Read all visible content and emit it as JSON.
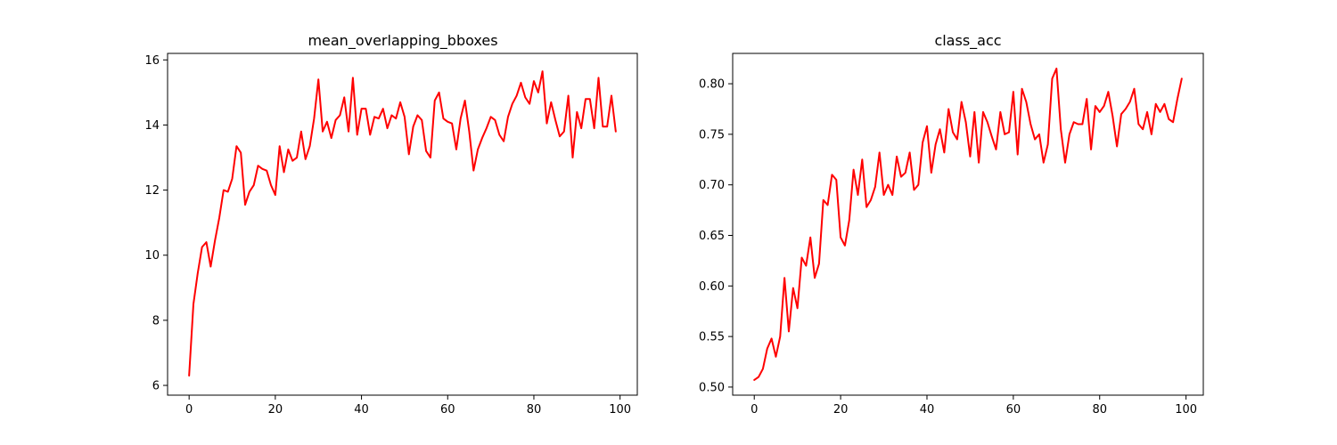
{
  "chart_data": [
    {
      "type": "line",
      "title": "mean_overlapping_bboxes",
      "xlabel": "",
      "ylabel": "",
      "xlim": [
        -5,
        104
      ],
      "ylim": [
        5.7,
        16.2
      ],
      "xticks": [
        0,
        20,
        40,
        60,
        80,
        100
      ],
      "yticks": [
        6,
        8,
        10,
        12,
        14,
        16
      ],
      "ytick_decimals": 0,
      "grid": false,
      "series": [
        {
          "color": "#ff0000",
          "x": [
            0,
            1,
            2,
            3,
            4,
            5,
            6,
            7,
            8,
            9,
            10,
            11,
            12,
            13,
            14,
            15,
            16,
            17,
            18,
            19,
            20,
            21,
            22,
            23,
            24,
            25,
            26,
            27,
            28,
            29,
            30,
            31,
            32,
            33,
            34,
            35,
            36,
            37,
            38,
            39,
            40,
            41,
            42,
            43,
            44,
            45,
            46,
            47,
            48,
            49,
            50,
            51,
            52,
            53,
            54,
            55,
            56,
            57,
            58,
            59,
            60,
            61,
            62,
            63,
            64,
            65,
            66,
            67,
            68,
            69,
            70,
            71,
            72,
            73,
            74,
            75,
            76,
            77,
            78,
            79,
            80,
            81,
            82,
            83,
            84,
            85,
            86,
            87,
            88,
            89,
            90,
            91,
            92,
            93,
            94,
            95,
            96,
            97,
            98,
            99
          ],
          "y": [
            6.3,
            8.5,
            9.45,
            10.25,
            10.4,
            9.65,
            10.45,
            11.15,
            12.0,
            11.95,
            12.35,
            13.35,
            13.15,
            11.55,
            11.95,
            12.15,
            12.75,
            12.65,
            12.6,
            12.15,
            11.85,
            13.35,
            12.55,
            13.25,
            12.9,
            13.0,
            13.8,
            12.95,
            13.35,
            14.2,
            15.4,
            13.8,
            14.1,
            13.6,
            14.15,
            14.3,
            14.85,
            13.8,
            15.45,
            13.7,
            14.5,
            14.5,
            13.7,
            14.25,
            14.2,
            14.5,
            13.9,
            14.3,
            14.2,
            14.7,
            14.25,
            13.1,
            13.95,
            14.3,
            14.15,
            13.2,
            13.0,
            14.75,
            15.0,
            14.2,
            14.1,
            14.05,
            13.25,
            14.2,
            14.75,
            13.8,
            12.6,
            13.25,
            13.6,
            13.9,
            14.25,
            14.15,
            13.7,
            13.5,
            14.25,
            14.65,
            14.9,
            15.3,
            14.85,
            14.65,
            15.35,
            15.0,
            15.65,
            14.05,
            14.7,
            14.15,
            13.65,
            13.8,
            14.9,
            13.0,
            14.4,
            13.9,
            14.8,
            14.8,
            13.9,
            15.45,
            13.95,
            13.95,
            14.9,
            13.8
          ]
        }
      ]
    },
    {
      "type": "line",
      "title": "class_acc",
      "xlabel": "",
      "ylabel": "",
      "xlim": [
        -5,
        104
      ],
      "ylim": [
        0.492,
        0.83
      ],
      "xticks": [
        0,
        20,
        40,
        60,
        80,
        100
      ],
      "yticks": [
        0.5,
        0.55,
        0.6,
        0.65,
        0.7,
        0.75,
        0.8
      ],
      "ytick_decimals": 2,
      "grid": false,
      "series": [
        {
          "color": "#ff0000",
          "x": [
            0,
            1,
            2,
            3,
            4,
            5,
            6,
            7,
            8,
            9,
            10,
            11,
            12,
            13,
            14,
            15,
            16,
            17,
            18,
            19,
            20,
            21,
            22,
            23,
            24,
            25,
            26,
            27,
            28,
            29,
            30,
            31,
            32,
            33,
            34,
            35,
            36,
            37,
            38,
            39,
            40,
            41,
            42,
            43,
            44,
            45,
            46,
            47,
            48,
            49,
            50,
            51,
            52,
            53,
            54,
            55,
            56,
            57,
            58,
            59,
            60,
            61,
            62,
            63,
            64,
            65,
            66,
            67,
            68,
            69,
            70,
            71,
            72,
            73,
            74,
            75,
            76,
            77,
            78,
            79,
            80,
            81,
            82,
            83,
            84,
            85,
            86,
            87,
            88,
            89,
            90,
            91,
            92,
            93,
            94,
            95,
            96,
            97,
            98,
            99
          ],
          "y": [
            0.507,
            0.51,
            0.518,
            0.538,
            0.548,
            0.53,
            0.55,
            0.608,
            0.555,
            0.598,
            0.578,
            0.628,
            0.62,
            0.648,
            0.608,
            0.622,
            0.685,
            0.68,
            0.71,
            0.705,
            0.648,
            0.64,
            0.665,
            0.715,
            0.69,
            0.725,
            0.678,
            0.685,
            0.698,
            0.732,
            0.69,
            0.7,
            0.69,
            0.728,
            0.708,
            0.712,
            0.732,
            0.695,
            0.7,
            0.742,
            0.758,
            0.712,
            0.74,
            0.755,
            0.732,
            0.775,
            0.752,
            0.745,
            0.782,
            0.762,
            0.728,
            0.772,
            0.722,
            0.772,
            0.762,
            0.748,
            0.735,
            0.772,
            0.75,
            0.752,
            0.792,
            0.73,
            0.795,
            0.782,
            0.76,
            0.745,
            0.75,
            0.722,
            0.74,
            0.805,
            0.815,
            0.755,
            0.722,
            0.75,
            0.762,
            0.76,
            0.76,
            0.785,
            0.735,
            0.778,
            0.772,
            0.778,
            0.792,
            0.768,
            0.738,
            0.77,
            0.775,
            0.782,
            0.795,
            0.76,
            0.755,
            0.772,
            0.75,
            0.78,
            0.772,
            0.78,
            0.765,
            0.762,
            0.785,
            0.805
          ]
        }
      ]
    }
  ]
}
